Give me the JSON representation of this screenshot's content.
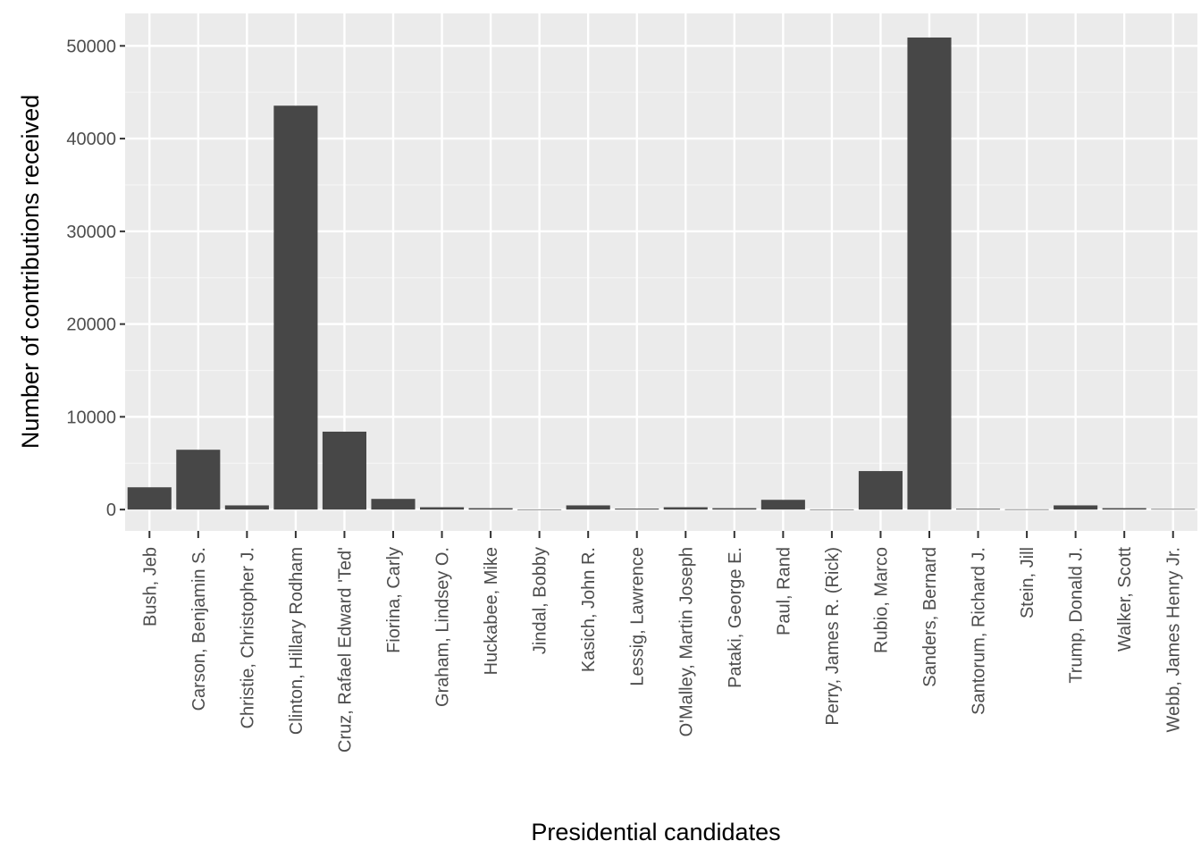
{
  "chart_data": {
    "type": "bar",
    "xlabel": "Presidential candidates",
    "ylabel": "Number of contributions received",
    "ylim": [
      -2300,
      53500
    ],
    "yticks": [
      0,
      10000,
      20000,
      30000,
      40000,
      50000
    ],
    "ytick_labels": [
      "0",
      "10000",
      "20000",
      "30000",
      "40000",
      "50000"
    ],
    "grid": true,
    "legend": "none",
    "categories": [
      "Bush, Jeb",
      "Carson, Benjamin S.",
      "Christie, Christopher J.",
      "Clinton, Hillary Rodham",
      "Cruz, Rafael Edward 'Ted'",
      "Fiorina, Carly",
      "Graham, Lindsey O.",
      "Huckabee, Mike",
      "Jindal, Bobby",
      "Kasich, John R.",
      "Lessig, Lawrence",
      "O'Malley, Martin Joseph",
      "Pataki, George E.",
      "Paul, Rand",
      "Perry, James R. (Rick)",
      "Rubio, Marco",
      "Sanders, Bernard",
      "Santorum, Richard J.",
      "Stein, Jill",
      "Trump, Donald J.",
      "Walker, Scott",
      "Webb, James Henry Jr."
    ],
    "values": [
      2400,
      6450,
      450,
      43550,
      8400,
      1150,
      250,
      150,
      20,
      450,
      100,
      250,
      150,
      1050,
      20,
      4150,
      50900,
      80,
      30,
      450,
      150,
      60
    ],
    "colors": {
      "bar": "#474747",
      "panel": "#ebebeb",
      "grid_major": "#ffffff",
      "grid_minor": "#f5f5f5",
      "tick": "#333333",
      "tick_text": "#4d4d4d"
    }
  }
}
